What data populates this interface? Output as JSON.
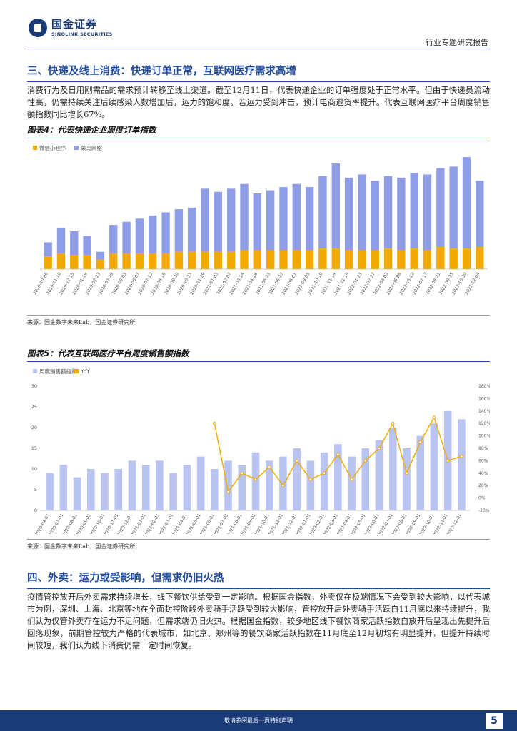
{
  "header": {
    "logo_cn": "国金证券",
    "logo_en": "SINOLINK SECURITIES",
    "doc_type": "行业专题研究报告"
  },
  "section3": {
    "title": "三、快递及线上消费：快递订单正常，互联网医疗需求高增",
    "body": "消费行为及日用刚需品的需求预计转移至线上渠道。截至12月11日，代表快递企业的订单强度处于正常水平。但由于快递员流动性高，仍需持续关注后续感染人数增加后，运力的饱和度，若运力受到冲击，预计电商退货率提升。代表互联网医疗平台周度销售额指数同比增长67%。"
  },
  "figure4": {
    "title": "图表4：代表快递企业周度订单指数",
    "source": "来源：国金数字未来Lab，国金证券研究所"
  },
  "figure5": {
    "title": "图表5：代表互联网医疗平台周度销售额指数",
    "source": "来源：国金数字未来Lab，国金证券研究所"
  },
  "section4": {
    "title": "四、外卖：运力或受影响，但需求仍旧火热",
    "body": "疫情管控放开后外卖需求持续增长，线下餐饮供给受到一定影响。根据国金指数，外卖仅在极端情况下会受到较大影响，以代表城市为例，深圳、上海、北京等地在全面封控阶段外卖骑手活跃受到较大影响，管控放开后外卖骑手活跃自11月底以来持续提升，我们认为仅管外卖存在运力不足问题，但需求端仍旧火热。根据国金指数，较多地区线下餐饮商家活跃指数自放开后呈现出先提升后回落现象，前期管控较为严格的代表城市，如北京、郑州等的餐饮商家活跃指数在11月底至12月初均有明显提升，但提升持续时间较短，我们认为线下消费仍需一定时间恢复。"
  },
  "footer": {
    "note": "敬请参阅最后一页特别声明",
    "page": "5"
  },
  "colors": {
    "brand": "#1a3a78",
    "section_heading": "#1f4a9c",
    "bar_purple": "#8e9de6",
    "bar_orange": "#f2a900",
    "bar_light": "#b9c4f0",
    "line_orange": "#f2a900"
  },
  "chart_data": [
    {
      "type": "bar",
      "stacked": true,
      "title": "图表4：代表快递企业周度订单指数",
      "legend_position": "top-left",
      "grid": false,
      "x": [
        "2019-10-06",
        "2019-11-10",
        "2019-12-15",
        "2020-01-19",
        "2020-02-23",
        "2020-03-29",
        "2020-05-03",
        "2020-06-07",
        "2020-07-12",
        "2020-08-16",
        "2020-09-20",
        "2020-10-25",
        "2020-11-29",
        "2021-01-03",
        "2021-02-07",
        "2021-03-14",
        "2021-04-18",
        "2021-05-23",
        "2021-06-27",
        "2021-08-01",
        "2021-09-05",
        "2021-10-10",
        "2021-11-14",
        "2021-12-19",
        "2022-01-23",
        "2022-02-27",
        "2022-04-03",
        "2022-05-08",
        "2022-06-12",
        "2022-07-17",
        "2022-08-21",
        "2022-09-25",
        "2022-10-30",
        "2022-12-04"
      ],
      "series": [
        {
          "name": "微信小程序",
          "color": "#f2a900",
          "values": [
            8,
            10,
            9,
            9,
            6,
            10,
            10,
            10,
            10,
            10,
            11,
            11,
            11,
            11,
            11,
            12,
            12,
            12,
            12,
            12,
            12,
            13,
            13,
            12,
            12,
            12,
            13,
            12,
            13,
            12,
            14,
            13,
            13,
            14
          ]
        },
        {
          "name": "菜鸟网络",
          "color": "#8e9de6",
          "values": [
            9,
            16,
            15,
            12,
            5,
            18,
            20,
            22,
            24,
            26,
            27,
            28,
            40,
            38,
            40,
            42,
            36,
            38,
            40,
            42,
            40,
            46,
            54,
            46,
            48,
            44,
            46,
            46,
            48,
            48,
            50,
            52,
            58,
            42
          ]
        }
      ]
    },
    {
      "type": "bar",
      "title": "图表5：代表互联网医疗平台周度销售额指数",
      "legend_position": "top-left",
      "grid": false,
      "x": [
        "2020-04-01",
        "2020-07-01",
        "2020-08-01",
        "2020-09-01",
        "2020-10-01",
        "2020-11-01",
        "2020-12-01",
        "2021-01-01",
        "2021-02-01",
        "2021-03-01",
        "2021-04-01",
        "2021-05-01",
        "2021-06-01",
        "2021-07-01",
        "2021-08-01",
        "2021-09-01",
        "2021-10-01",
        "2021-11-01",
        "2021-12-01",
        "2022-01-01",
        "2022-02-01",
        "2022-03-01",
        "2022-04-01",
        "2022-05-01",
        "2022-06-01",
        "2022-07-01",
        "2022-08-01",
        "2022-09-01",
        "2022-10-01",
        "2022-11-01",
        "2022-12-01"
      ],
      "ylim_left": [
        0,
        30
      ],
      "yticks_left": [
        0,
        5,
        10,
        15,
        20,
        25,
        30
      ],
      "ylim_right": [
        -20,
        180
      ],
      "yticks_right": [
        "-20%",
        "0%",
        "20%",
        "40%",
        "60%",
        "80%",
        "100%",
        "120%",
        "140%",
        "160%",
        "180%"
      ],
      "series": [
        {
          "name": "周度销售额指数",
          "axis": "left",
          "color": "#b9c4f0",
          "values": [
            9,
            11,
            8,
            10,
            9,
            10,
            12,
            11,
            12,
            9,
            11,
            13,
            10,
            12,
            11,
            14,
            12,
            13,
            15,
            12,
            14,
            16,
            13,
            15,
            17,
            20,
            15,
            18,
            21,
            24,
            22
          ]
        },
        {
          "name": "YoY",
          "axis": "right",
          "type": "line",
          "color": "#f2a900",
          "marker": "circle",
          "values": [
            null,
            null,
            null,
            null,
            null,
            null,
            null,
            null,
            null,
            null,
            null,
            null,
            120,
            10,
            40,
            30,
            50,
            20,
            60,
            30,
            40,
            70,
            30,
            60,
            80,
            120,
            40,
            90,
            130,
            60,
            67
          ]
        }
      ]
    }
  ]
}
